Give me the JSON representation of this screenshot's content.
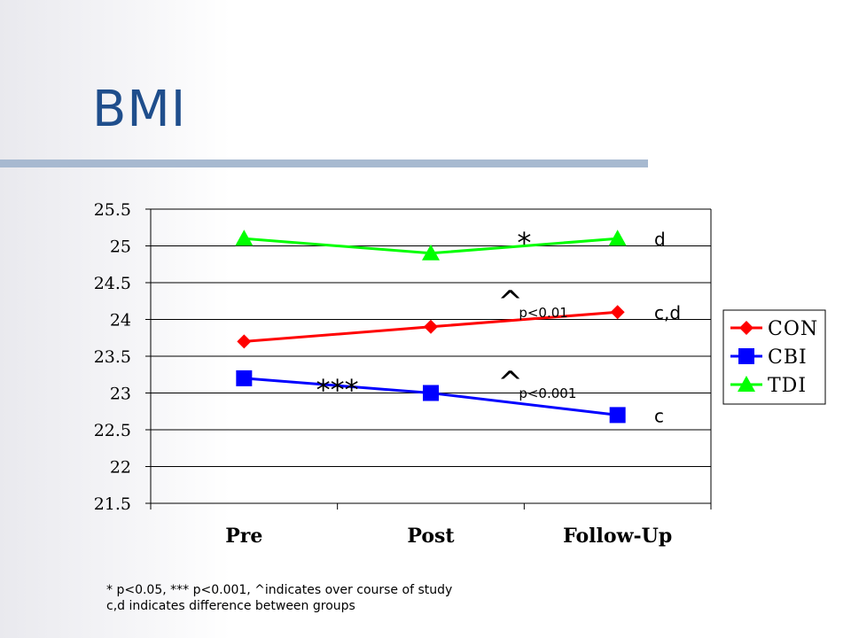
{
  "slide": {
    "title": "BMI",
    "footnotes": [
      "* p<0.05, *** p<0.001, ^indicates over course of study",
      "c,d indicates difference between groups"
    ],
    "colors": {
      "title": "#1f4e8c",
      "rule": "#a7b9d0"
    }
  },
  "chart_data": {
    "type": "line",
    "title": "",
    "xlabel": "",
    "ylabel": "",
    "categories": [
      "Pre",
      "Post",
      "Follow-Up"
    ],
    "ylim": [
      21.5,
      25.5
    ],
    "yticks": [
      25.5,
      25,
      24.5,
      24,
      23.5,
      23,
      22.5,
      22,
      21.5
    ],
    "ytick_labels": [
      "25.5",
      "25",
      "24.5",
      "24",
      "23.5",
      "23",
      "22.5",
      "22",
      "21.5"
    ],
    "grid": true,
    "legend_position": "right",
    "series": [
      {
        "name": "CON",
        "values": [
          23.7,
          23.9,
          24.1
        ],
        "color": "#ff0000",
        "marker": "diamond",
        "group_label": "c,d"
      },
      {
        "name": "CBI",
        "values": [
          23.2,
          23.0,
          22.7
        ],
        "color": "#0000ff",
        "marker": "square",
        "group_label": "c"
      },
      {
        "name": "TDI",
        "values": [
          25.1,
          24.9,
          25.1
        ],
        "color": "#00ff00",
        "marker": "triangle",
        "group_label": "d"
      }
    ],
    "annotations": [
      {
        "text": "*",
        "between": [
          1,
          2
        ],
        "y": 25.2,
        "style": "large"
      },
      {
        "text": "^",
        "sub": "p<0.01",
        "between": [
          1,
          2
        ],
        "y": 24.2,
        "style": "caret"
      },
      {
        "text": "***",
        "between": [
          0,
          1
        ],
        "y": 23.2,
        "style": "large"
      },
      {
        "text": "^",
        "sub": "p<0.001",
        "between": [
          1,
          2
        ],
        "y": 23.1,
        "style": "caret"
      }
    ]
  }
}
